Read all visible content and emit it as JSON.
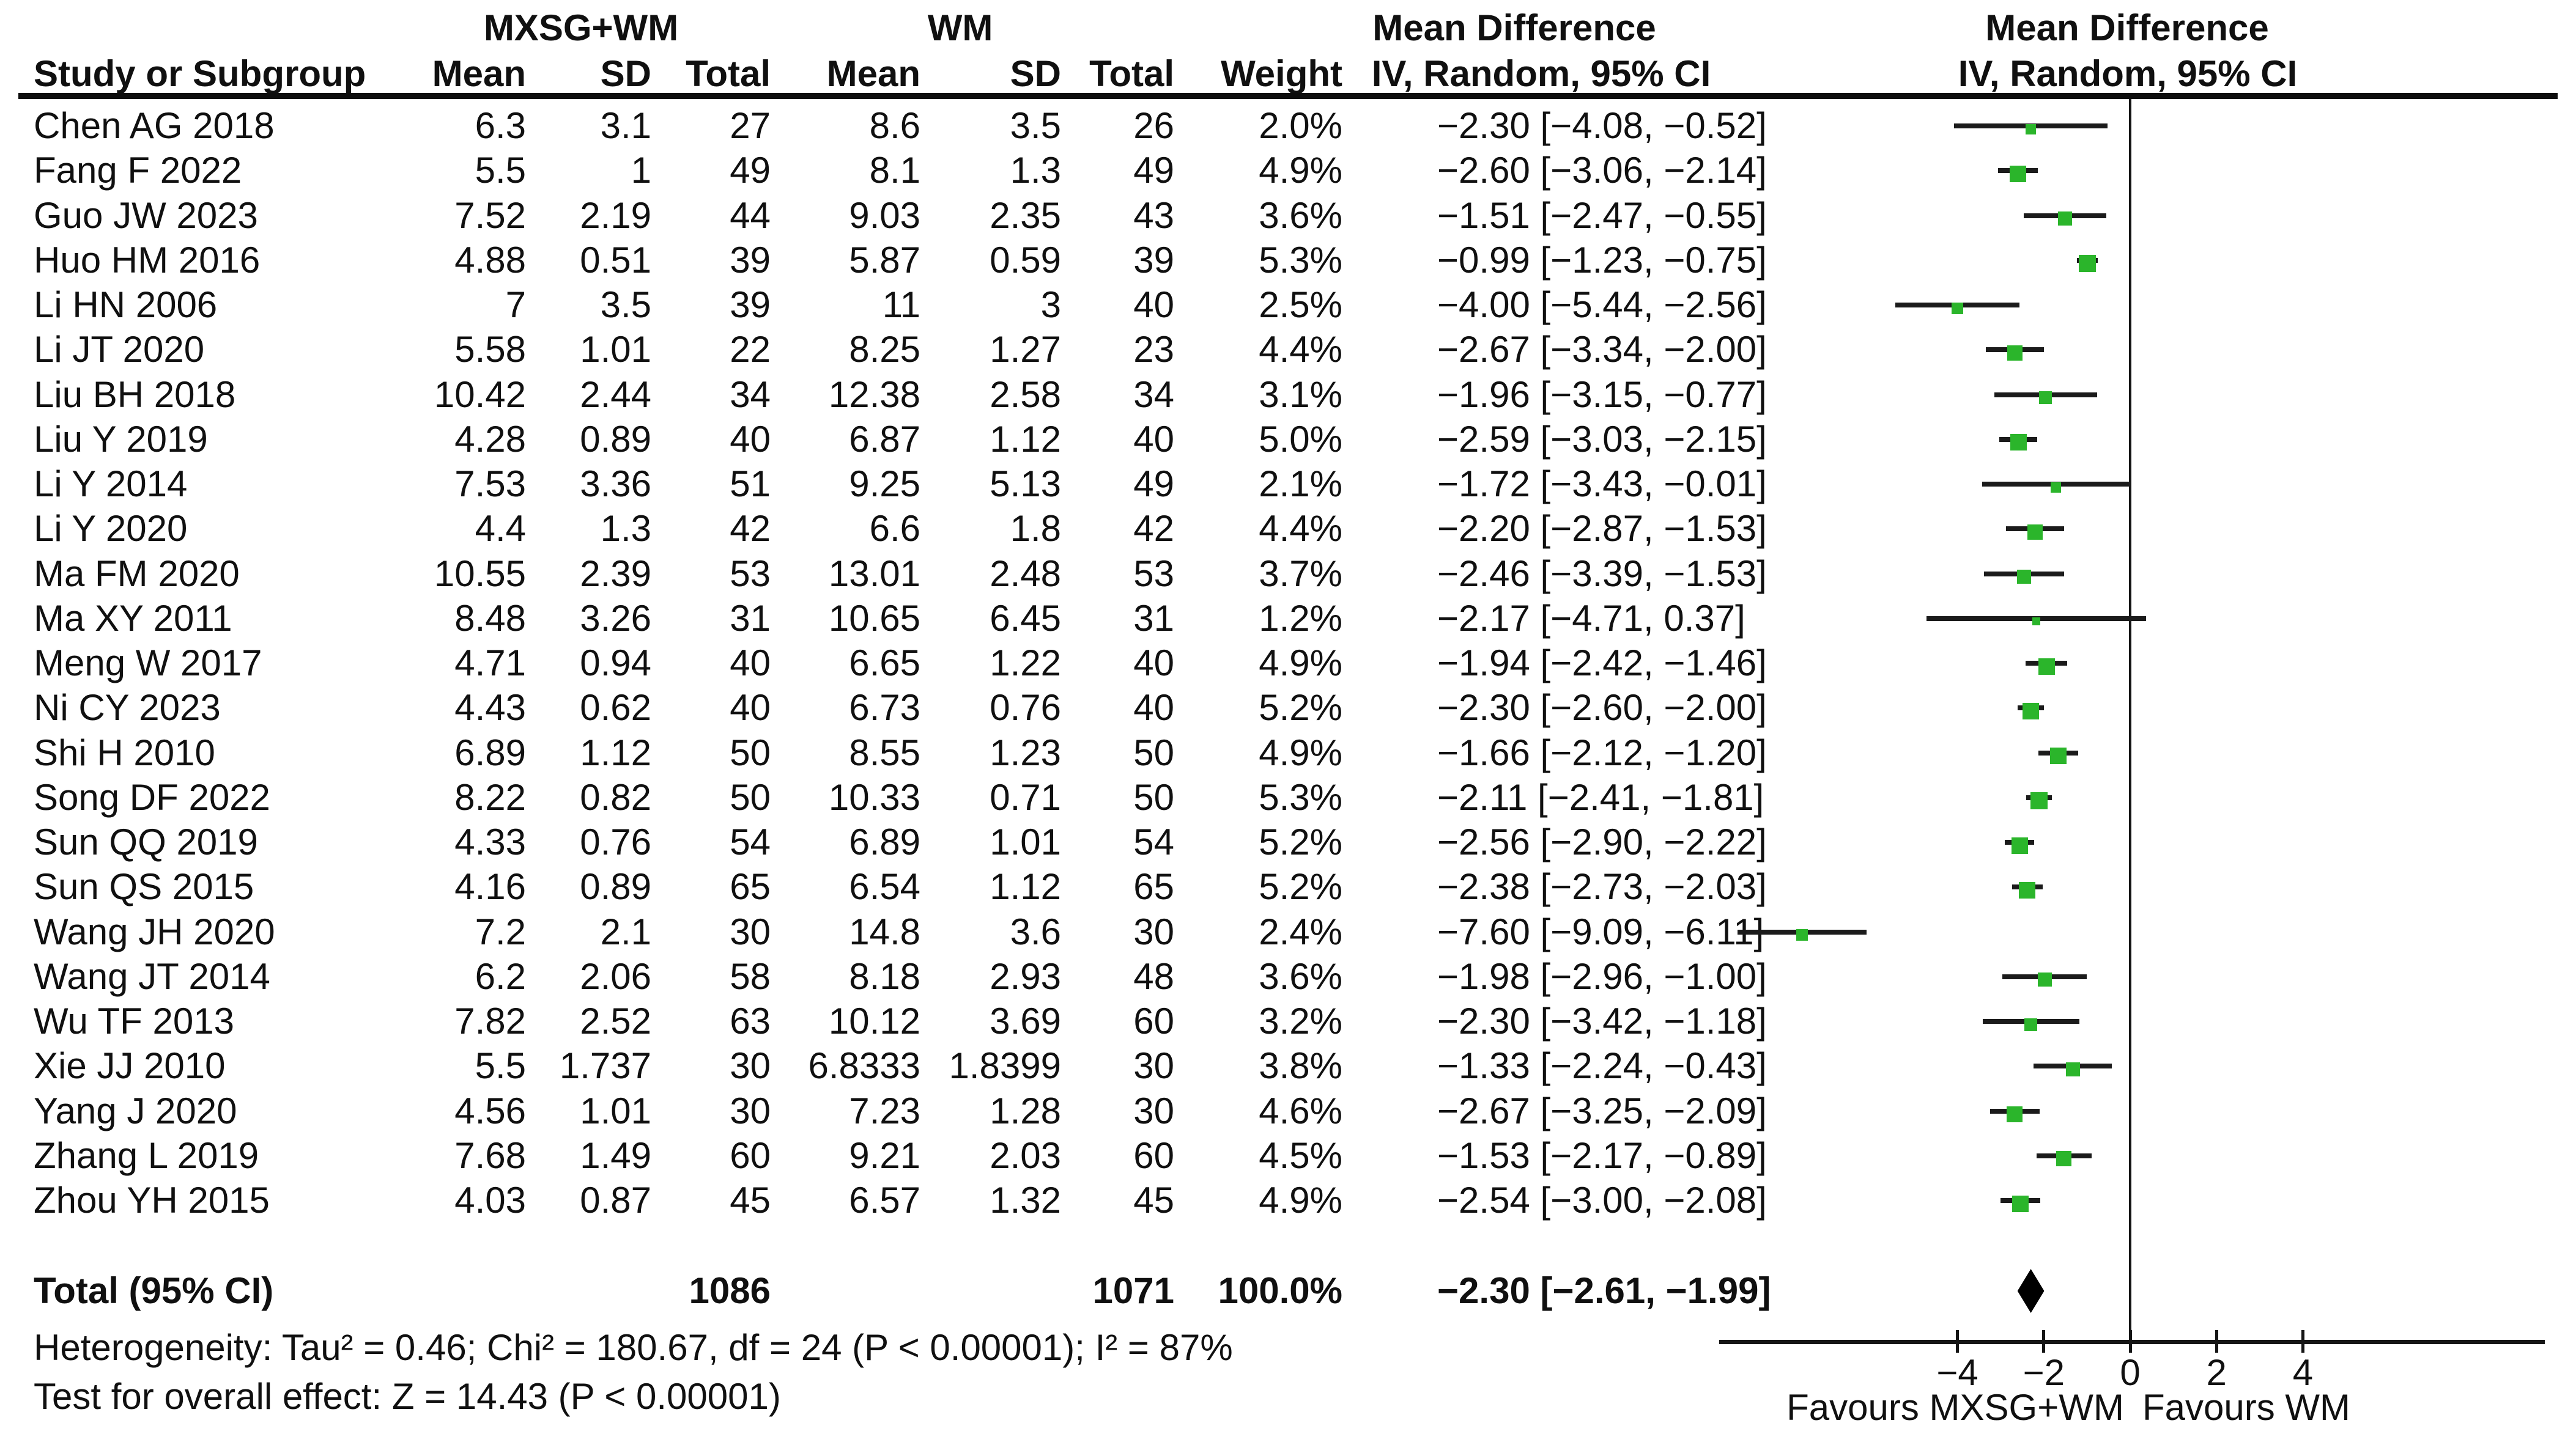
{
  "chart_data": {
    "type": "forest",
    "group1_label": "MXSG+WM",
    "group2_label": "WM",
    "effect_label": "Mean Difference",
    "method_label": "IV, Random, 95% CI",
    "columns": {
      "study": "Study or Subgroup",
      "mean": "Mean",
      "sd": "SD",
      "total": "Total",
      "weight": "Weight"
    },
    "studies": [
      {
        "name": "Chen AG 2018",
        "mean1": "6.3",
        "sd1": "3.1",
        "n1": "27",
        "mean2": "8.6",
        "sd2": "3.5",
        "n2": "26",
        "weight": "2.0%",
        "weight_pct": 2.0,
        "md": -2.3,
        "lo": -4.08,
        "hi": -0.52,
        "ci_label": "−2.30 [−4.08, −0.52]"
      },
      {
        "name": "Fang F 2022",
        "mean1": "5.5",
        "sd1": "1",
        "n1": "49",
        "mean2": "8.1",
        "sd2": "1.3",
        "n2": "49",
        "weight": "4.9%",
        "weight_pct": 4.9,
        "md": -2.6,
        "lo": -3.06,
        "hi": -2.14,
        "ci_label": "−2.60 [−3.06, −2.14]"
      },
      {
        "name": "Guo JW 2023",
        "mean1": "7.52",
        "sd1": "2.19",
        "n1": "44",
        "mean2": "9.03",
        "sd2": "2.35",
        "n2": "43",
        "weight": "3.6%",
        "weight_pct": 3.6,
        "md": -1.51,
        "lo": -2.47,
        "hi": -0.55,
        "ci_label": "−1.51 [−2.47, −0.55]"
      },
      {
        "name": "Huo HM 2016",
        "mean1": "4.88",
        "sd1": "0.51",
        "n1": "39",
        "mean2": "5.87",
        "sd2": "0.59",
        "n2": "39",
        "weight": "5.3%",
        "weight_pct": 5.3,
        "md": -0.99,
        "lo": -1.23,
        "hi": -0.75,
        "ci_label": "−0.99 [−1.23, −0.75]"
      },
      {
        "name": "Li HN 2006",
        "mean1": "7",
        "sd1": "3.5",
        "n1": "39",
        "mean2": "11",
        "sd2": "3",
        "n2": "40",
        "weight": "2.5%",
        "weight_pct": 2.5,
        "md": -4.0,
        "lo": -5.44,
        "hi": -2.56,
        "ci_label": "−4.00 [−5.44, −2.56]"
      },
      {
        "name": "Li JT 2020",
        "mean1": "5.58",
        "sd1": "1.01",
        "n1": "22",
        "mean2": "8.25",
        "sd2": "1.27",
        "n2": "23",
        "weight": "4.4%",
        "weight_pct": 4.4,
        "md": -2.67,
        "lo": -3.34,
        "hi": -2.0,
        "ci_label": "−2.67 [−3.34, −2.00]"
      },
      {
        "name": "Liu BH 2018",
        "mean1": "10.42",
        "sd1": "2.44",
        "n1": "34",
        "mean2": "12.38",
        "sd2": "2.58",
        "n2": "34",
        "weight": "3.1%",
        "weight_pct": 3.1,
        "md": -1.96,
        "lo": -3.15,
        "hi": -0.77,
        "ci_label": "−1.96 [−3.15, −0.77]"
      },
      {
        "name": "Liu Y 2019",
        "mean1": "4.28",
        "sd1": "0.89",
        "n1": "40",
        "mean2": "6.87",
        "sd2": "1.12",
        "n2": "40",
        "weight": "5.0%",
        "weight_pct": 5.0,
        "md": -2.59,
        "lo": -3.03,
        "hi": -2.15,
        "ci_label": "−2.59 [−3.03, −2.15]"
      },
      {
        "name": "Li Y 2014",
        "mean1": "7.53",
        "sd1": "3.36",
        "n1": "51",
        "mean2": "9.25",
        "sd2": "5.13",
        "n2": "49",
        "weight": "2.1%",
        "weight_pct": 2.1,
        "md": -1.72,
        "lo": -3.43,
        "hi": -0.01,
        "ci_label": "−1.72 [−3.43, −0.01]"
      },
      {
        "name": "Li Y 2020",
        "mean1": "4.4",
        "sd1": "1.3",
        "n1": "42",
        "mean2": "6.6",
        "sd2": "1.8",
        "n2": "42",
        "weight": "4.4%",
        "weight_pct": 4.4,
        "md": -2.2,
        "lo": -2.87,
        "hi": -1.53,
        "ci_label": "−2.20 [−2.87, −1.53]"
      },
      {
        "name": "Ma FM 2020",
        "mean1": "10.55",
        "sd1": "2.39",
        "n1": "53",
        "mean2": "13.01",
        "sd2": "2.48",
        "n2": "53",
        "weight": "3.7%",
        "weight_pct": 3.7,
        "md": -2.46,
        "lo": -3.39,
        "hi": -1.53,
        "ci_label": "−2.46 [−3.39, −1.53]"
      },
      {
        "name": "Ma XY 2011",
        "mean1": "8.48",
        "sd1": "3.26",
        "n1": "31",
        "mean2": "10.65",
        "sd2": "6.45",
        "n2": "31",
        "weight": "1.2%",
        "weight_pct": 1.2,
        "md": -2.17,
        "lo": -4.71,
        "hi": 0.37,
        "ci_label": "−2.17 [−4.71, 0.37]"
      },
      {
        "name": "Meng W 2017",
        "mean1": "4.71",
        "sd1": "0.94",
        "n1": "40",
        "mean2": "6.65",
        "sd2": "1.22",
        "n2": "40",
        "weight": "4.9%",
        "weight_pct": 4.9,
        "md": -1.94,
        "lo": -2.42,
        "hi": -1.46,
        "ci_label": "−1.94 [−2.42, −1.46]"
      },
      {
        "name": "Ni CY 2023",
        "mean1": "4.43",
        "sd1": "0.62",
        "n1": "40",
        "mean2": "6.73",
        "sd2": "0.76",
        "n2": "40",
        "weight": "5.2%",
        "weight_pct": 5.2,
        "md": -2.3,
        "lo": -2.6,
        "hi": -2.0,
        "ci_label": "−2.30 [−2.60, −2.00]"
      },
      {
        "name": "Shi H 2010",
        "mean1": "6.89",
        "sd1": "1.12",
        "n1": "50",
        "mean2": "8.55",
        "sd2": "1.23",
        "n2": "50",
        "weight": "4.9%",
        "weight_pct": 4.9,
        "md": -1.66,
        "lo": -2.12,
        "hi": -1.2,
        "ci_label": "−1.66 [−2.12, −1.20]"
      },
      {
        "name": "Song DF 2022",
        "mean1": "8.22",
        "sd1": "0.82",
        "n1": "50",
        "mean2": "10.33",
        "sd2": "0.71",
        "n2": "50",
        "weight": "5.3%",
        "weight_pct": 5.3,
        "md": -2.11,
        "lo": -2.41,
        "hi": -1.81,
        "ci_label": "−2.11 [−2.41, −1.81]"
      },
      {
        "name": "Sun QQ 2019",
        "mean1": "4.33",
        "sd1": "0.76",
        "n1": "54",
        "mean2": "6.89",
        "sd2": "1.01",
        "n2": "54",
        "weight": "5.2%",
        "weight_pct": 5.2,
        "md": -2.56,
        "lo": -2.9,
        "hi": -2.22,
        "ci_label": "−2.56 [−2.90, −2.22]"
      },
      {
        "name": "Sun QS 2015",
        "mean1": "4.16",
        "sd1": "0.89",
        "n1": "65",
        "mean2": "6.54",
        "sd2": "1.12",
        "n2": "65",
        "weight": "5.2%",
        "weight_pct": 5.2,
        "md": -2.38,
        "lo": -2.73,
        "hi": -2.03,
        "ci_label": "−2.38 [−2.73, −2.03]"
      },
      {
        "name": "Wang JH 2020",
        "mean1": "7.2",
        "sd1": "2.1",
        "n1": "30",
        "mean2": "14.8",
        "sd2": "3.6",
        "n2": "30",
        "weight": "2.4%",
        "weight_pct": 2.4,
        "md": -7.6,
        "lo": -9.09,
        "hi": -6.11,
        "ci_label": "−7.60 [−9.09, −6.11]"
      },
      {
        "name": "Wang JT 2014",
        "mean1": "6.2",
        "sd1": "2.06",
        "n1": "58",
        "mean2": "8.18",
        "sd2": "2.93",
        "n2": "48",
        "weight": "3.6%",
        "weight_pct": 3.6,
        "md": -1.98,
        "lo": -2.96,
        "hi": -1.0,
        "ci_label": "−1.98 [−2.96, −1.00]"
      },
      {
        "name": "Wu TF 2013",
        "mean1": "7.82",
        "sd1": "2.52",
        "n1": "63",
        "mean2": "10.12",
        "sd2": "3.69",
        "n2": "60",
        "weight": "3.2%",
        "weight_pct": 3.2,
        "md": -2.3,
        "lo": -3.42,
        "hi": -1.18,
        "ci_label": "−2.30 [−3.42, −1.18]"
      },
      {
        "name": "Xie JJ 2010",
        "mean1": "5.5",
        "sd1": "1.737",
        "n1": "30",
        "mean2": "6.8333",
        "sd2": "1.8399",
        "n2": "30",
        "weight": "3.8%",
        "weight_pct": 3.8,
        "md": -1.33,
        "lo": -2.24,
        "hi": -0.43,
        "ci_label": "−1.33 [−2.24, −0.43]"
      },
      {
        "name": "Yang J 2020",
        "mean1": "4.56",
        "sd1": "1.01",
        "n1": "30",
        "mean2": "7.23",
        "sd2": "1.28",
        "n2": "30",
        "weight": "4.6%",
        "weight_pct": 4.6,
        "md": -2.67,
        "lo": -3.25,
        "hi": -2.09,
        "ci_label": "−2.67 [−3.25, −2.09]"
      },
      {
        "name": "Zhang L 2019",
        "mean1": "7.68",
        "sd1": "1.49",
        "n1": "60",
        "mean2": "9.21",
        "sd2": "2.03",
        "n2": "60",
        "weight": "4.5%",
        "weight_pct": 4.5,
        "md": -1.53,
        "lo": -2.17,
        "hi": -0.89,
        "ci_label": "−1.53 [−2.17, −0.89]"
      },
      {
        "name": "Zhou YH 2015",
        "mean1": "4.03",
        "sd1": "0.87",
        "n1": "45",
        "mean2": "6.57",
        "sd2": "1.32",
        "n2": "45",
        "weight": "4.9%",
        "weight_pct": 4.9,
        "md": -2.54,
        "lo": -3.0,
        "hi": -2.08,
        "ci_label": "−2.54 [−3.00, −2.08]"
      }
    ],
    "total": {
      "label": "Total (95% CI)",
      "n1": "1086",
      "n2": "1071",
      "weight": "100.0%",
      "md": -2.3,
      "lo": -2.61,
      "hi": -1.99,
      "ci_label": "−2.30 [−2.61, −1.99]"
    },
    "heterogeneity": "Heterogeneity: Tau² = 0.46; Chi² = 180.67, df = 24 (P < 0.00001); I² = 87%",
    "overall_effect": "Test for overall effect: Z = 14.43 (P < 0.00001)",
    "axis": {
      "ticks": [
        {
          "v": -4,
          "label": "−4"
        },
        {
          "v": -2,
          "label": "−2"
        },
        {
          "v": 0,
          "label": "0"
        },
        {
          "v": 2,
          "label": "2"
        },
        {
          "v": 4,
          "label": "4"
        }
      ],
      "favours_left": "Favours MXSG+WM",
      "favours_right": "Favours WM"
    },
    "colors": {
      "marker_green": "#2BB52B",
      "line_black": "#1b1b1b"
    }
  }
}
